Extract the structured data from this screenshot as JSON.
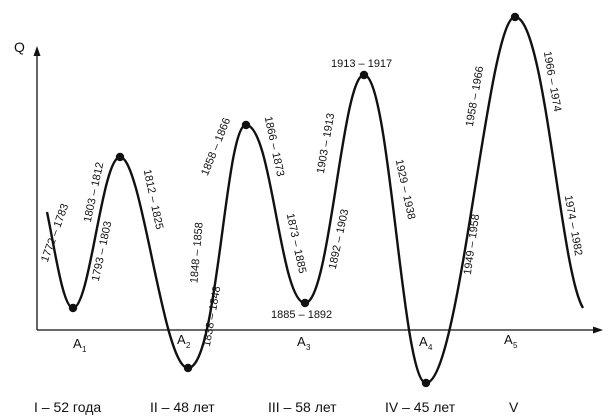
{
  "axis": {
    "y_label": "Q"
  },
  "peaks": [
    {
      "id": "p1",
      "label": "1803 – 1812"
    },
    {
      "id": "p2",
      "label": "1858 – 1866"
    },
    {
      "id": "p3",
      "label": "1913 – 1917"
    },
    {
      "id": "p4",
      "label": ""
    }
  ],
  "troughs": [
    {
      "id": "a1",
      "name": "A1"
    },
    {
      "id": "a2",
      "name": "A2",
      "label": "1838 – 1848"
    },
    {
      "id": "a3",
      "name": "A3",
      "label": "1885 – 1892"
    },
    {
      "id": "a4",
      "name": "A4"
    },
    {
      "id": "a5",
      "name": "A5"
    }
  ],
  "phase_labels": [
    "1772 – 1783",
    "1793 – 1803",
    "1812 – 1825",
    "1848 – 1858",
    "1866 – 1873",
    "1873 – 1885",
    "1892 – 1903",
    "1903 – 1913",
    "1929 – 1938",
    "1949 – 1958",
    "1958 – 1966",
    "1966 – 1974",
    "1974 – 1982"
  ],
  "cycles": [
    "I – 52 года",
    "II – 48 лет",
    "III – 58 лет",
    "IV – 45 лет",
    "V"
  ]
}
